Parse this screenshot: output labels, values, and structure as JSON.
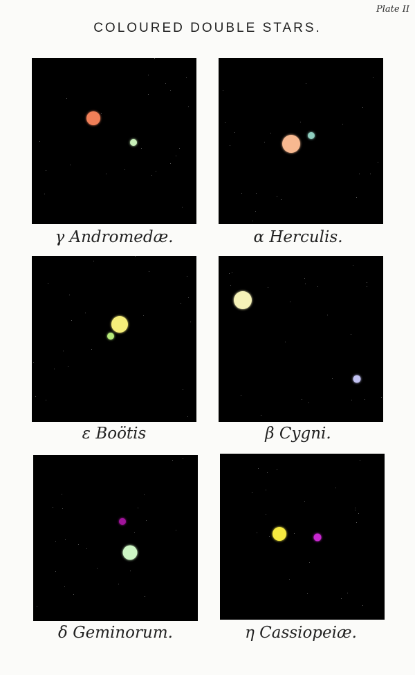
{
  "plate_label": "Plate II",
  "title": "COLOURED DOUBLE STARS.",
  "panels": [
    {
      "caption": "γ Andromedæ.",
      "stars": [
        {
          "name": "primary",
          "color": "#f07f58"
        },
        {
          "name": "companion",
          "color": "#c8f0b8"
        }
      ]
    },
    {
      "caption": "α Herculis.",
      "stars": [
        {
          "name": "primary",
          "color": "#f7b890"
        },
        {
          "name": "companion",
          "color": "#8fcfc0"
        }
      ]
    },
    {
      "caption": "ε Boötis",
      "stars": [
        {
          "name": "primary",
          "color": "#f5ee7a"
        },
        {
          "name": "companion",
          "color": "#b6ea7a"
        }
      ]
    },
    {
      "caption": "β Cygni.",
      "stars": [
        {
          "name": "primary",
          "color": "#f6f2b8"
        },
        {
          "name": "companion",
          "color": "#c2c2f2"
        }
      ]
    },
    {
      "caption": "δ Geminorum.",
      "stars": [
        {
          "name": "companion",
          "color": "#a0149a"
        },
        {
          "name": "primary",
          "color": "#cdf6c4"
        }
      ]
    },
    {
      "caption": "η Cassiopeiæ.",
      "stars": [
        {
          "name": "primary",
          "color": "#f6ea40"
        },
        {
          "name": "companion",
          "color": "#c828d0"
        }
      ]
    }
  ]
}
